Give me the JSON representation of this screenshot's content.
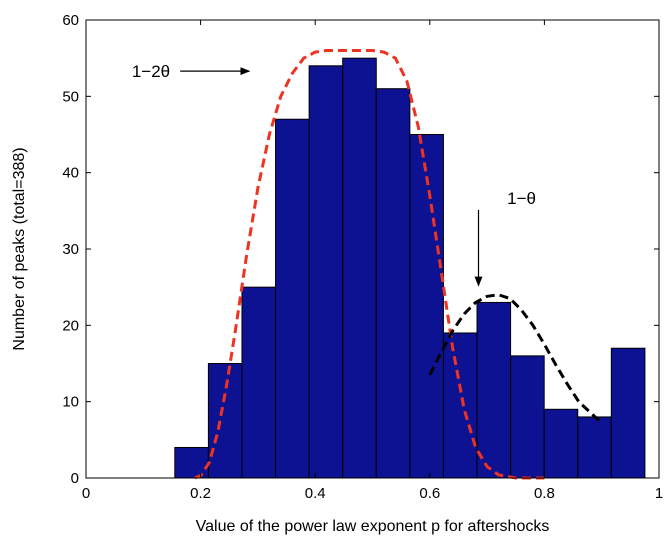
{
  "chart_data": {
    "type": "bar",
    "title": "",
    "xlabel": "Value of the power law exponent p for aftershocks",
    "ylabel": "Number of peaks (total=388)",
    "xlim": [
      0,
      1
    ],
    "ylim": [
      0,
      60
    ],
    "x_ticks": [
      0,
      0.2,
      0.4,
      0.6,
      0.8,
      1
    ],
    "x_tick_labels": [
      "0",
      "0.2",
      "0.4",
      "0.6",
      "0.8",
      "1"
    ],
    "y_ticks": [
      0,
      10,
      20,
      30,
      40,
      50,
      60
    ],
    "y_tick_labels": [
      "0",
      "10",
      "20",
      "30",
      "40",
      "50",
      "60"
    ],
    "grid": false,
    "bar_color": "#0c1292",
    "bins": [
      {
        "x0": 0.155,
        "x1": 0.2136,
        "value": 4
      },
      {
        "x0": 0.2136,
        "x1": 0.2722,
        "value": 15
      },
      {
        "x0": 0.2722,
        "x1": 0.3308,
        "value": 25
      },
      {
        "x0": 0.3308,
        "x1": 0.3894,
        "value": 47
      },
      {
        "x0": 0.3894,
        "x1": 0.448,
        "value": 54
      },
      {
        "x0": 0.448,
        "x1": 0.5066,
        "value": 55
      },
      {
        "x0": 0.5066,
        "x1": 0.5652,
        "value": 51
      },
      {
        "x0": 0.5652,
        "x1": 0.6238,
        "value": 45
      },
      {
        "x0": 0.6238,
        "x1": 0.6824,
        "value": 19
      },
      {
        "x0": 0.6824,
        "x1": 0.741,
        "value": 23
      },
      {
        "x0": 0.741,
        "x1": 0.7996,
        "value": 16
      },
      {
        "x0": 0.7996,
        "x1": 0.8582,
        "value": 9
      },
      {
        "x0": 0.8582,
        "x1": 0.9168,
        "value": 8
      },
      {
        "x0": 0.9168,
        "x1": 0.9754,
        "value": 17
      }
    ],
    "series": [
      {
        "style": "dashed",
        "color": "#ee3322",
        "x": [
          0.19,
          0.2,
          0.215,
          0.23,
          0.245,
          0.26,
          0.28,
          0.3,
          0.32,
          0.34,
          0.36,
          0.38,
          0.4,
          0.42,
          0.44,
          0.46,
          0.48,
          0.5,
          0.52,
          0.54,
          0.56,
          0.58,
          0.6,
          0.62,
          0.64,
          0.66,
          0.68,
          0.7,
          0.72,
          0.75,
          0.8
        ],
        "y": [
          0,
          0.3,
          2,
          6,
          12,
          19,
          29,
          38,
          45,
          50,
          53,
          55,
          55.8,
          56,
          56,
          56,
          56,
          56,
          55.8,
          55,
          52,
          46,
          37,
          27,
          17,
          9,
          4,
          1.5,
          0.4,
          0,
          0
        ]
      },
      {
        "style": "dashed",
        "color": "#000000",
        "x": [
          0.6,
          0.62,
          0.64,
          0.66,
          0.68,
          0.7,
          0.72,
          0.74,
          0.76,
          0.78,
          0.8,
          0.82,
          0.84,
          0.86,
          0.88,
          0.9
        ],
        "y": [
          13.5,
          16.5,
          19.3,
          21.5,
          23,
          23.8,
          24,
          23.5,
          22,
          20,
          17.5,
          14.8,
          12.3,
          10,
          8.6,
          7.2
        ]
      }
    ],
    "annotations": [
      {
        "text": "1−2θ",
        "x": 0.08,
        "y": 53.3,
        "arrow_to": [
          0.285,
          53.3
        ]
      },
      {
        "text": "1−θ",
        "x": 0.735,
        "y": 36.7,
        "arrow_to": [
          0.685,
          25.2
        ]
      }
    ]
  }
}
